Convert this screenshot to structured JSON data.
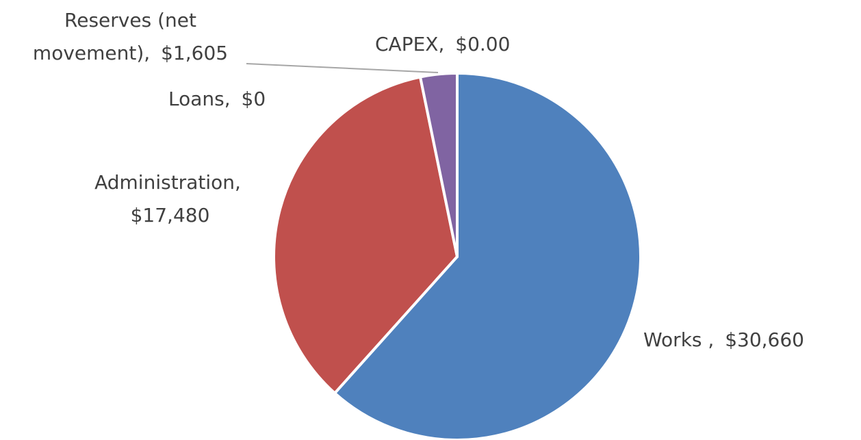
{
  "chart_data": {
    "type": "pie",
    "categories": [
      "Works ,",
      "Administration,",
      "Loans,",
      "Reserves (net movement),",
      "CAPEX,"
    ],
    "values": [
      30660,
      17480,
      0,
      1605,
      0
    ],
    "value_labels": [
      "$30,660",
      "$17,480",
      "$0",
      "$1,605",
      "$0.00"
    ],
    "colors": [
      "#4f81bd",
      "#c0504d",
      "#9bbb59",
      "#8064a2",
      "#4bacc6"
    ]
  }
}
